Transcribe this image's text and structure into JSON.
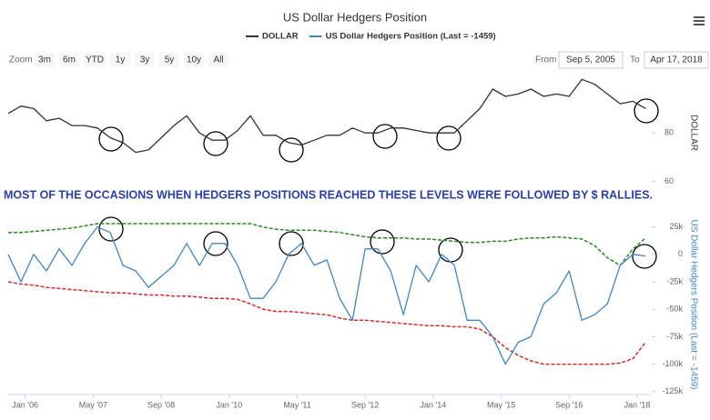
{
  "zoom": {
    "label": "Zoom",
    "buttons": [
      "3m",
      "6m",
      "YTD",
      "1y",
      "3y",
      "5y",
      "10y",
      "All"
    ]
  },
  "range": {
    "from_label": "From",
    "from": "Sep 5, 2005",
    "to_label": "To",
    "to": "Apr 17, 2018"
  },
  "annotation": "MOST OF THE OCCASIONS WHEN HEDGERS POSITIONS REACHED THESE LEVELS WERE FOLLOWED BY $ RALLIES.",
  "chart_data": [
    {
      "type": "line",
      "title": "US Dollar Hedgers Position",
      "y_label": "DOLLAR",
      "x": [
        "2005-09",
        "2005-12",
        "2006-03",
        "2006-06",
        "2006-09",
        "2006-12",
        "2007-03",
        "2007-06",
        "2007-09",
        "2007-12",
        "2008-03",
        "2008-06",
        "2008-09",
        "2008-12",
        "2009-03",
        "2009-06",
        "2009-09",
        "2009-12",
        "2010-03",
        "2010-06",
        "2010-09",
        "2010-12",
        "2011-03",
        "2011-06",
        "2011-09",
        "2011-12",
        "2012-03",
        "2012-06",
        "2012-09",
        "2012-12",
        "2013-03",
        "2013-06",
        "2013-09",
        "2013-12",
        "2014-03",
        "2014-06",
        "2014-09",
        "2014-12",
        "2015-03",
        "2015-06",
        "2015-09",
        "2015-12",
        "2016-03",
        "2016-06",
        "2016-09",
        "2016-12",
        "2017-03",
        "2017-06",
        "2017-09",
        "2017-12",
        "2018-03"
      ],
      "xlim": [
        "2005-09",
        "2018-04"
      ],
      "ylim": [
        58,
        101
      ],
      "yticks": [
        60,
        80
      ],
      "series": [
        {
          "name": "DOLLAR",
          "color": "#333333",
          "values": [
            88,
            91,
            90,
            85,
            86,
            83,
            83,
            82,
            78,
            76,
            72,
            73,
            78,
            83,
            87,
            80,
            77,
            77,
            81,
            87,
            79,
            79,
            76,
            75,
            77,
            79,
            79,
            82,
            80,
            80,
            82,
            82,
            81,
            80,
            80,
            80,
            85,
            90,
            98,
            95,
            96,
            98,
            95,
            96,
            95,
            102,
            100,
            96,
            92,
            93,
            90
          ]
        }
      ]
    },
    {
      "type": "line",
      "y_label": "US Dollar Hedgers Position (Last = -1459)",
      "x": [
        "2005-09",
        "2005-12",
        "2006-03",
        "2006-06",
        "2006-09",
        "2006-12",
        "2007-03",
        "2007-06",
        "2007-09",
        "2007-12",
        "2008-03",
        "2008-06",
        "2008-09",
        "2008-12",
        "2009-03",
        "2009-06",
        "2009-09",
        "2009-12",
        "2010-03",
        "2010-06",
        "2010-09",
        "2010-12",
        "2011-03",
        "2011-06",
        "2011-09",
        "2011-12",
        "2012-03",
        "2012-06",
        "2012-09",
        "2012-12",
        "2013-03",
        "2013-06",
        "2013-09",
        "2013-12",
        "2014-03",
        "2014-06",
        "2014-09",
        "2014-12",
        "2015-03",
        "2015-06",
        "2015-09",
        "2015-12",
        "2016-03",
        "2016-06",
        "2016-09",
        "2016-12",
        "2017-03",
        "2017-06",
        "2017-09",
        "2017-12",
        "2018-03"
      ],
      "xlim": [
        "2005-09",
        "2018-04"
      ],
      "xticks": [
        {
          "value": "2006-01",
          "label": "Jan '06"
        },
        {
          "value": "2007-05",
          "label": "May '07"
        },
        {
          "value": "2008-09",
          "label": "Sep '08"
        },
        {
          "value": "2010-01",
          "label": "Jan '10"
        },
        {
          "value": "2011-05",
          "label": "May '11"
        },
        {
          "value": "2012-09",
          "label": "Sep '12"
        },
        {
          "value": "2014-01",
          "label": "Jan '14"
        },
        {
          "value": "2015-05",
          "label": "May '15"
        },
        {
          "value": "2016-09",
          "label": "Sep '16"
        },
        {
          "value": "2018-01",
          "label": "Jan '18"
        }
      ],
      "ylim": [
        -126000,
        33000
      ],
      "yticks": [
        {
          "value": 25000,
          "label": "25k"
        },
        0,
        {
          "value": -25000,
          "label": "-25k"
        },
        {
          "value": -50000,
          "label": "-50k"
        },
        {
          "value": -75000,
          "label": "-75k"
        },
        {
          "value": -100000,
          "label": "-100k"
        },
        {
          "value": -125000,
          "label": "-125k"
        }
      ],
      "series": [
        {
          "color": "#2a8a1f",
          "dash": true,
          "values": [
            20000,
            20000,
            21000,
            22000,
            23000,
            24000,
            26000,
            28000,
            28000,
            28000,
            28000,
            28000,
            28000,
            28000,
            28000,
            28000,
            28000,
            28000,
            28000,
            28000,
            25000,
            23000,
            22000,
            22000,
            22000,
            21000,
            20000,
            18000,
            16000,
            15000,
            15000,
            15000,
            14000,
            14000,
            13000,
            12000,
            11000,
            11000,
            12000,
            12000,
            14000,
            15000,
            15000,
            16000,
            15000,
            14000,
            8000,
            -3000,
            -10000,
            5000,
            15000
          ]
        },
        {
          "color": "#d42a2a",
          "dash": true,
          "values": [
            -25000,
            -27000,
            -28000,
            -30000,
            -31000,
            -32000,
            -33000,
            -34000,
            -35000,
            -35000,
            -36000,
            -37000,
            -37000,
            -38000,
            -38000,
            -39000,
            -40000,
            -40000,
            -41000,
            -45000,
            -50000,
            -52000,
            -52000,
            -53000,
            -54000,
            -55000,
            -58000,
            -60000,
            -60000,
            -61000,
            -62000,
            -63000,
            -64000,
            -65000,
            -65000,
            -66000,
            -66000,
            -68000,
            -75000,
            -85000,
            -92000,
            -97000,
            -100000,
            -100000,
            -100000,
            -100000,
            -100000,
            -100000,
            -99000,
            -95000,
            -80000
          ]
        },
        {
          "name": "US Dollar Hedgers Position (Last = -1459)",
          "color": "#3f86c4",
          "values": [
            0,
            -25000,
            0,
            -15000,
            5000,
            -10000,
            10000,
            25000,
            20000,
            -10000,
            -15000,
            -30000,
            -20000,
            -10000,
            10000,
            -10000,
            10000,
            10000,
            -10000,
            -40000,
            -40000,
            -25000,
            0,
            10000,
            -10000,
            -5000,
            -40000,
            -60000,
            5000,
            5000,
            -15000,
            -55000,
            -10000,
            -25000,
            0,
            -10000,
            -60000,
            -60000,
            -75000,
            -100000,
            -80000,
            -75000,
            -45000,
            -35000,
            -15000,
            -60000,
            -55000,
            -45000,
            -10000,
            0,
            -1459
          ]
        }
      ]
    }
  ]
}
